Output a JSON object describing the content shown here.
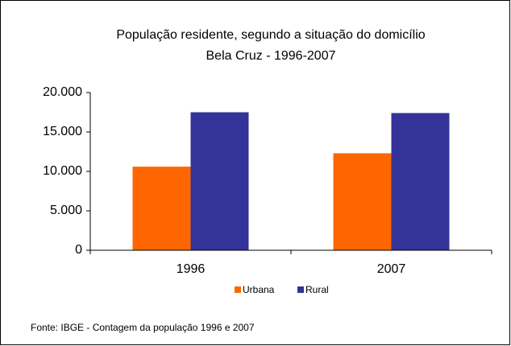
{
  "chart_data": {
    "type": "bar",
    "title": "População residente, segundo a situação do domicílio",
    "subtitle": "Bela Cruz - 1996-2007",
    "categories": [
      "1996",
      "2007"
    ],
    "series": [
      {
        "name": "Urbana",
        "color": "#ff6600",
        "values": [
          10600,
          12300
        ]
      },
      {
        "name": "Rural",
        "color": "#333399",
        "values": [
          17500,
          17400
        ]
      }
    ],
    "ylim": [
      0,
      20000
    ],
    "yticks": [
      0,
      {
        "value": 5000,
        "label": "5.000"
      },
      {
        "value": 10000,
        "label": "10.000"
      },
      {
        "value": 15000,
        "label": "15.000"
      },
      {
        "value": 20000,
        "label": "20.000"
      }
    ],
    "grid": false,
    "legend": "bottom",
    "source": "Fonte: IBGE - Contagem da população 1996 e 2007"
  }
}
